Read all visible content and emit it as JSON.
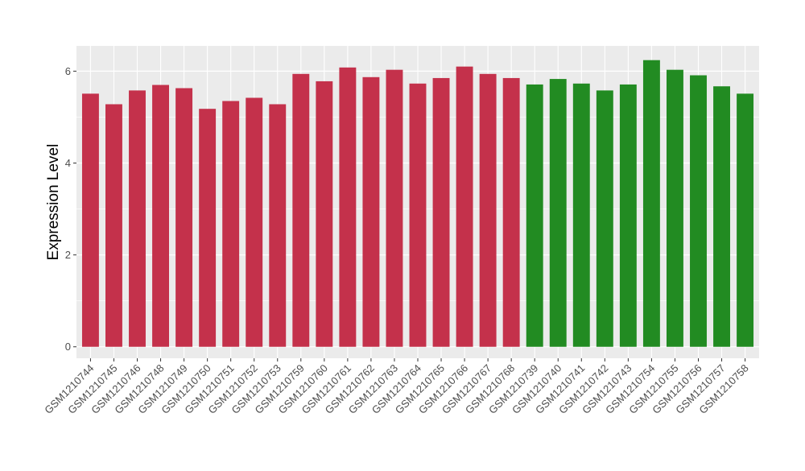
{
  "chart_data": {
    "type": "bar",
    "ylabel": "Expression Level",
    "xlabel": "",
    "ylim": [
      -0.25,
      6.55
    ],
    "yticks": [
      0,
      2,
      4,
      6
    ],
    "grid": true,
    "legend": "none",
    "colors": {
      "group_a": "#c4314b",
      "group_b": "#228b22",
      "panel": "#ebebeb",
      "grid": "#ffffff"
    },
    "categories": [
      "GSM1210744",
      "GSM1210745",
      "GSM1210746",
      "GSM1210748",
      "GSM1210749",
      "GSM1210750",
      "GSM1210751",
      "GSM1210752",
      "GSM1210753",
      "GSM1210759",
      "GSM1210760",
      "GSM1210761",
      "GSM1210762",
      "GSM1210763",
      "GSM1210764",
      "GSM1210765",
      "GSM1210766",
      "GSM1210767",
      "GSM1210768",
      "GSM1210739",
      "GSM1210740",
      "GSM1210741",
      "GSM1210742",
      "GSM1210743",
      "GSM1210754",
      "GSM1210755",
      "GSM1210756",
      "GSM1210757",
      "GSM1210758"
    ],
    "values": [
      5.51,
      5.28,
      5.58,
      5.7,
      5.63,
      5.18,
      5.35,
      5.42,
      5.28,
      5.94,
      5.78,
      6.08,
      5.87,
      6.03,
      5.73,
      5.85,
      6.1,
      5.94,
      5.85,
      5.71,
      5.83,
      5.73,
      5.58,
      5.71,
      6.24,
      6.03,
      5.91,
      5.67,
      5.51
    ],
    "groups": [
      "a",
      "a",
      "a",
      "a",
      "a",
      "a",
      "a",
      "a",
      "a",
      "a",
      "a",
      "a",
      "a",
      "a",
      "a",
      "a",
      "a",
      "a",
      "a",
      "b",
      "b",
      "b",
      "b",
      "b",
      "b",
      "b",
      "b",
      "b",
      "b"
    ]
  }
}
